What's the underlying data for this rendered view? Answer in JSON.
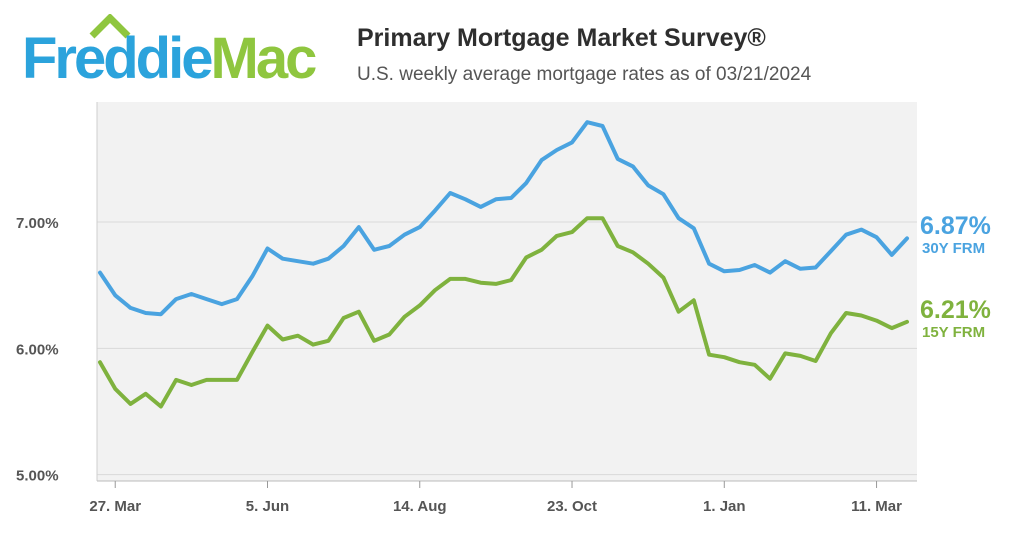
{
  "logo": {
    "part1": "Freddie",
    "part2": "Mac"
  },
  "header": {
    "title": "Primary Mortgage Market Survey®",
    "subtitle": "U.S. weekly average mortgage rates as of 03/21/2024"
  },
  "colors": {
    "blue": "#4aa3e0",
    "green": "#7fb23e",
    "grid": "#d9d9d9",
    "plot_bg": "#f2f2f2"
  },
  "chart_data": {
    "type": "line",
    "title": "Primary Mortgage Market Survey®",
    "subtitle": "U.S. weekly average mortgage rates as of 03/21/2024",
    "ylim": [
      4.95,
      7.95
    ],
    "yticks": [
      5.0,
      6.0,
      7.0
    ],
    "ytick_labels": [
      "5.00%",
      "6.00%",
      "7.00%"
    ],
    "xtick_labels": [
      "27. Mar",
      "5. Jun",
      "14. Aug",
      "23. Oct",
      "1. Jan",
      "11. Mar"
    ],
    "xtick_index": [
      1,
      11,
      21,
      31,
      41,
      51
    ],
    "grid": true,
    "series": [
      {
        "name": "30Y FRM",
        "end_label": "6.87%",
        "color": "#4aa3e0",
        "values": [
          6.6,
          6.42,
          6.32,
          6.28,
          6.27,
          6.39,
          6.43,
          6.39,
          6.35,
          6.39,
          6.57,
          6.79,
          6.71,
          6.69,
          6.67,
          6.71,
          6.81,
          6.96,
          6.78,
          6.81,
          6.9,
          6.96,
          7.09,
          7.23,
          7.18,
          7.12,
          7.18,
          7.19,
          7.31,
          7.49,
          7.57,
          7.63,
          7.79,
          7.76,
          7.5,
          7.44,
          7.29,
          7.22,
          7.03,
          6.95,
          6.67,
          6.61,
          6.62,
          6.66,
          6.6,
          6.69,
          6.63,
          6.64,
          6.77,
          6.9,
          6.94,
          6.88,
          6.74,
          6.87
        ]
      },
      {
        "name": "15Y FRM",
        "end_label": "6.21%",
        "color": "#7fb23e",
        "values": [
          5.89,
          5.68,
          5.56,
          5.64,
          5.54,
          5.75,
          5.71,
          5.75,
          5.75,
          5.75,
          5.97,
          6.18,
          6.07,
          6.1,
          6.03,
          6.06,
          6.24,
          6.29,
          6.06,
          6.11,
          6.25,
          6.34,
          6.46,
          6.55,
          6.55,
          6.52,
          6.51,
          6.54,
          6.72,
          6.78,
          6.89,
          6.92,
          7.03,
          7.03,
          6.81,
          6.76,
          6.67,
          6.56,
          6.29,
          6.38,
          5.95,
          5.93,
          5.89,
          5.87,
          5.76,
          5.96,
          5.94,
          5.9,
          6.12,
          6.28,
          6.26,
          6.22,
          6.16,
          6.21
        ]
      }
    ]
  }
}
